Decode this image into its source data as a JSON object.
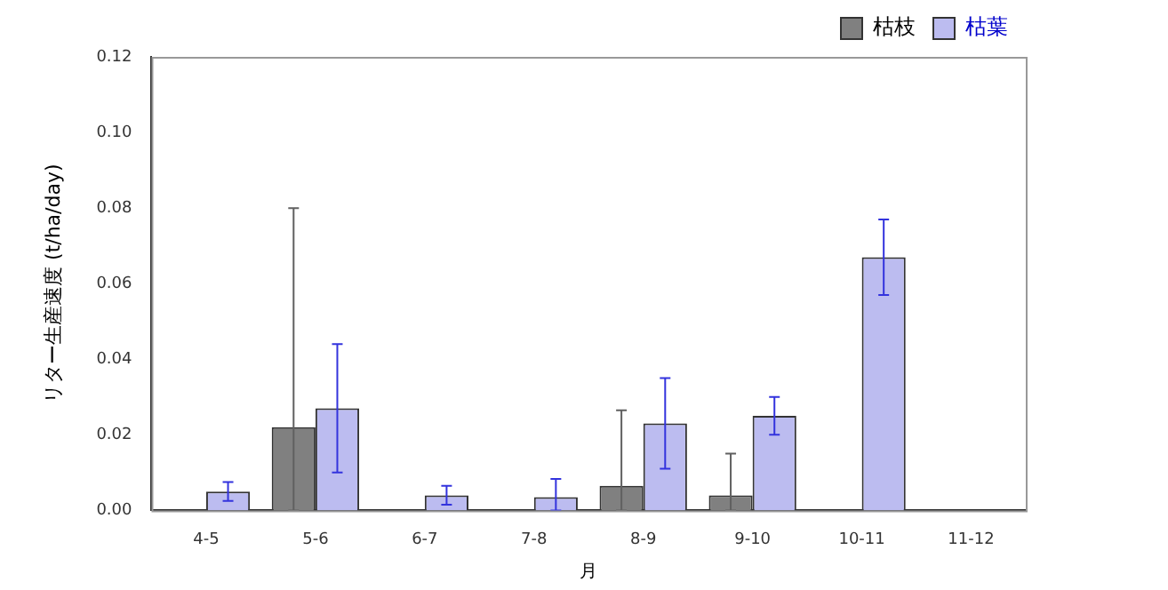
{
  "chart_data": {
    "type": "bar",
    "xlabel": "月",
    "ylabel": "リター生産速度 (t/ha/day)",
    "categories": [
      "4-5",
      "5-6",
      "6-7",
      "7-8",
      "8-9",
      "9-10",
      "10-11",
      "11-12"
    ],
    "series": [
      {
        "name": "枯枝",
        "color": "#808080",
        "values": [
          0,
          0.022,
          0,
          0,
          0.0065,
          0.004,
          0,
          null
        ],
        "errors": [
          null,
          [
            0,
            0.08
          ],
          null,
          null,
          [
            0,
            0.0265
          ],
          [
            0,
            0.015
          ],
          null,
          null
        ]
      },
      {
        "name": "枯葉",
        "color": "#bcbcf0",
        "values": [
          0.005,
          0.027,
          0.004,
          0.0035,
          0.023,
          0.025,
          0.067,
          null
        ],
        "errors": [
          0.0025,
          0.017,
          0.0025,
          [
            0,
            0.0083
          ],
          0.012,
          0.005,
          0.01,
          null
        ]
      }
    ],
    "ylim": [
      0,
      0.12
    ],
    "yticks": [
      {
        "value": 0,
        "label": "0.00"
      },
      0.02,
      0.04,
      0.06,
      0.08,
      {
        "value": 0.1,
        "label": "0.10"
      },
      0.12
    ],
    "grid": false,
    "legend": "top right"
  }
}
